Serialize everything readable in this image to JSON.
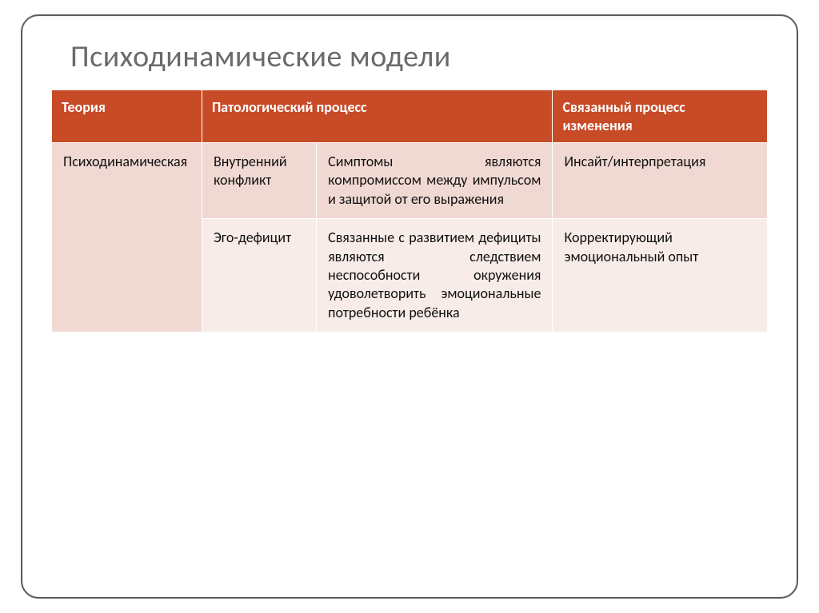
{
  "slide": {
    "title": "Психодинамические модели",
    "title_color": "#6a6a6a",
    "title_fontsize": 38,
    "frame_border_color": "#5c5c5c",
    "frame_border_radius": 22
  },
  "table": {
    "header_bg": "#c84b28",
    "header_fg": "#ffffff",
    "row_bg": "#f1d9d3",
    "row_alt_bg": "#f8ece9",
    "cell_fg": "#111111",
    "border_color": "#ffffff",
    "fontsize": 18,
    "column_widths_pct": [
      21,
      16,
      33,
      30
    ],
    "columns": [
      {
        "label": "Теория"
      },
      {
        "label": "Патологический процесс",
        "colspan": 2
      },
      {
        "label": "Связанный процесс изменения"
      }
    ],
    "rows": [
      {
        "theory": "Психодинамическая",
        "theory_rowspan": 2,
        "process_a": "Внутренний конфликт",
        "process_b": "Симптомы являются компромиссом между импульсом и защитой от его выражения",
        "change": "Инсайт/интерпретация"
      },
      {
        "process_a": "Эго-дефицит",
        "process_b": "Связанные с развитием дефициты являются следствием неспособности окружения удоволетворить эмоциональные потребности ребёнка",
        "change": "Корректирующий эмоциональный опыт"
      }
    ]
  }
}
